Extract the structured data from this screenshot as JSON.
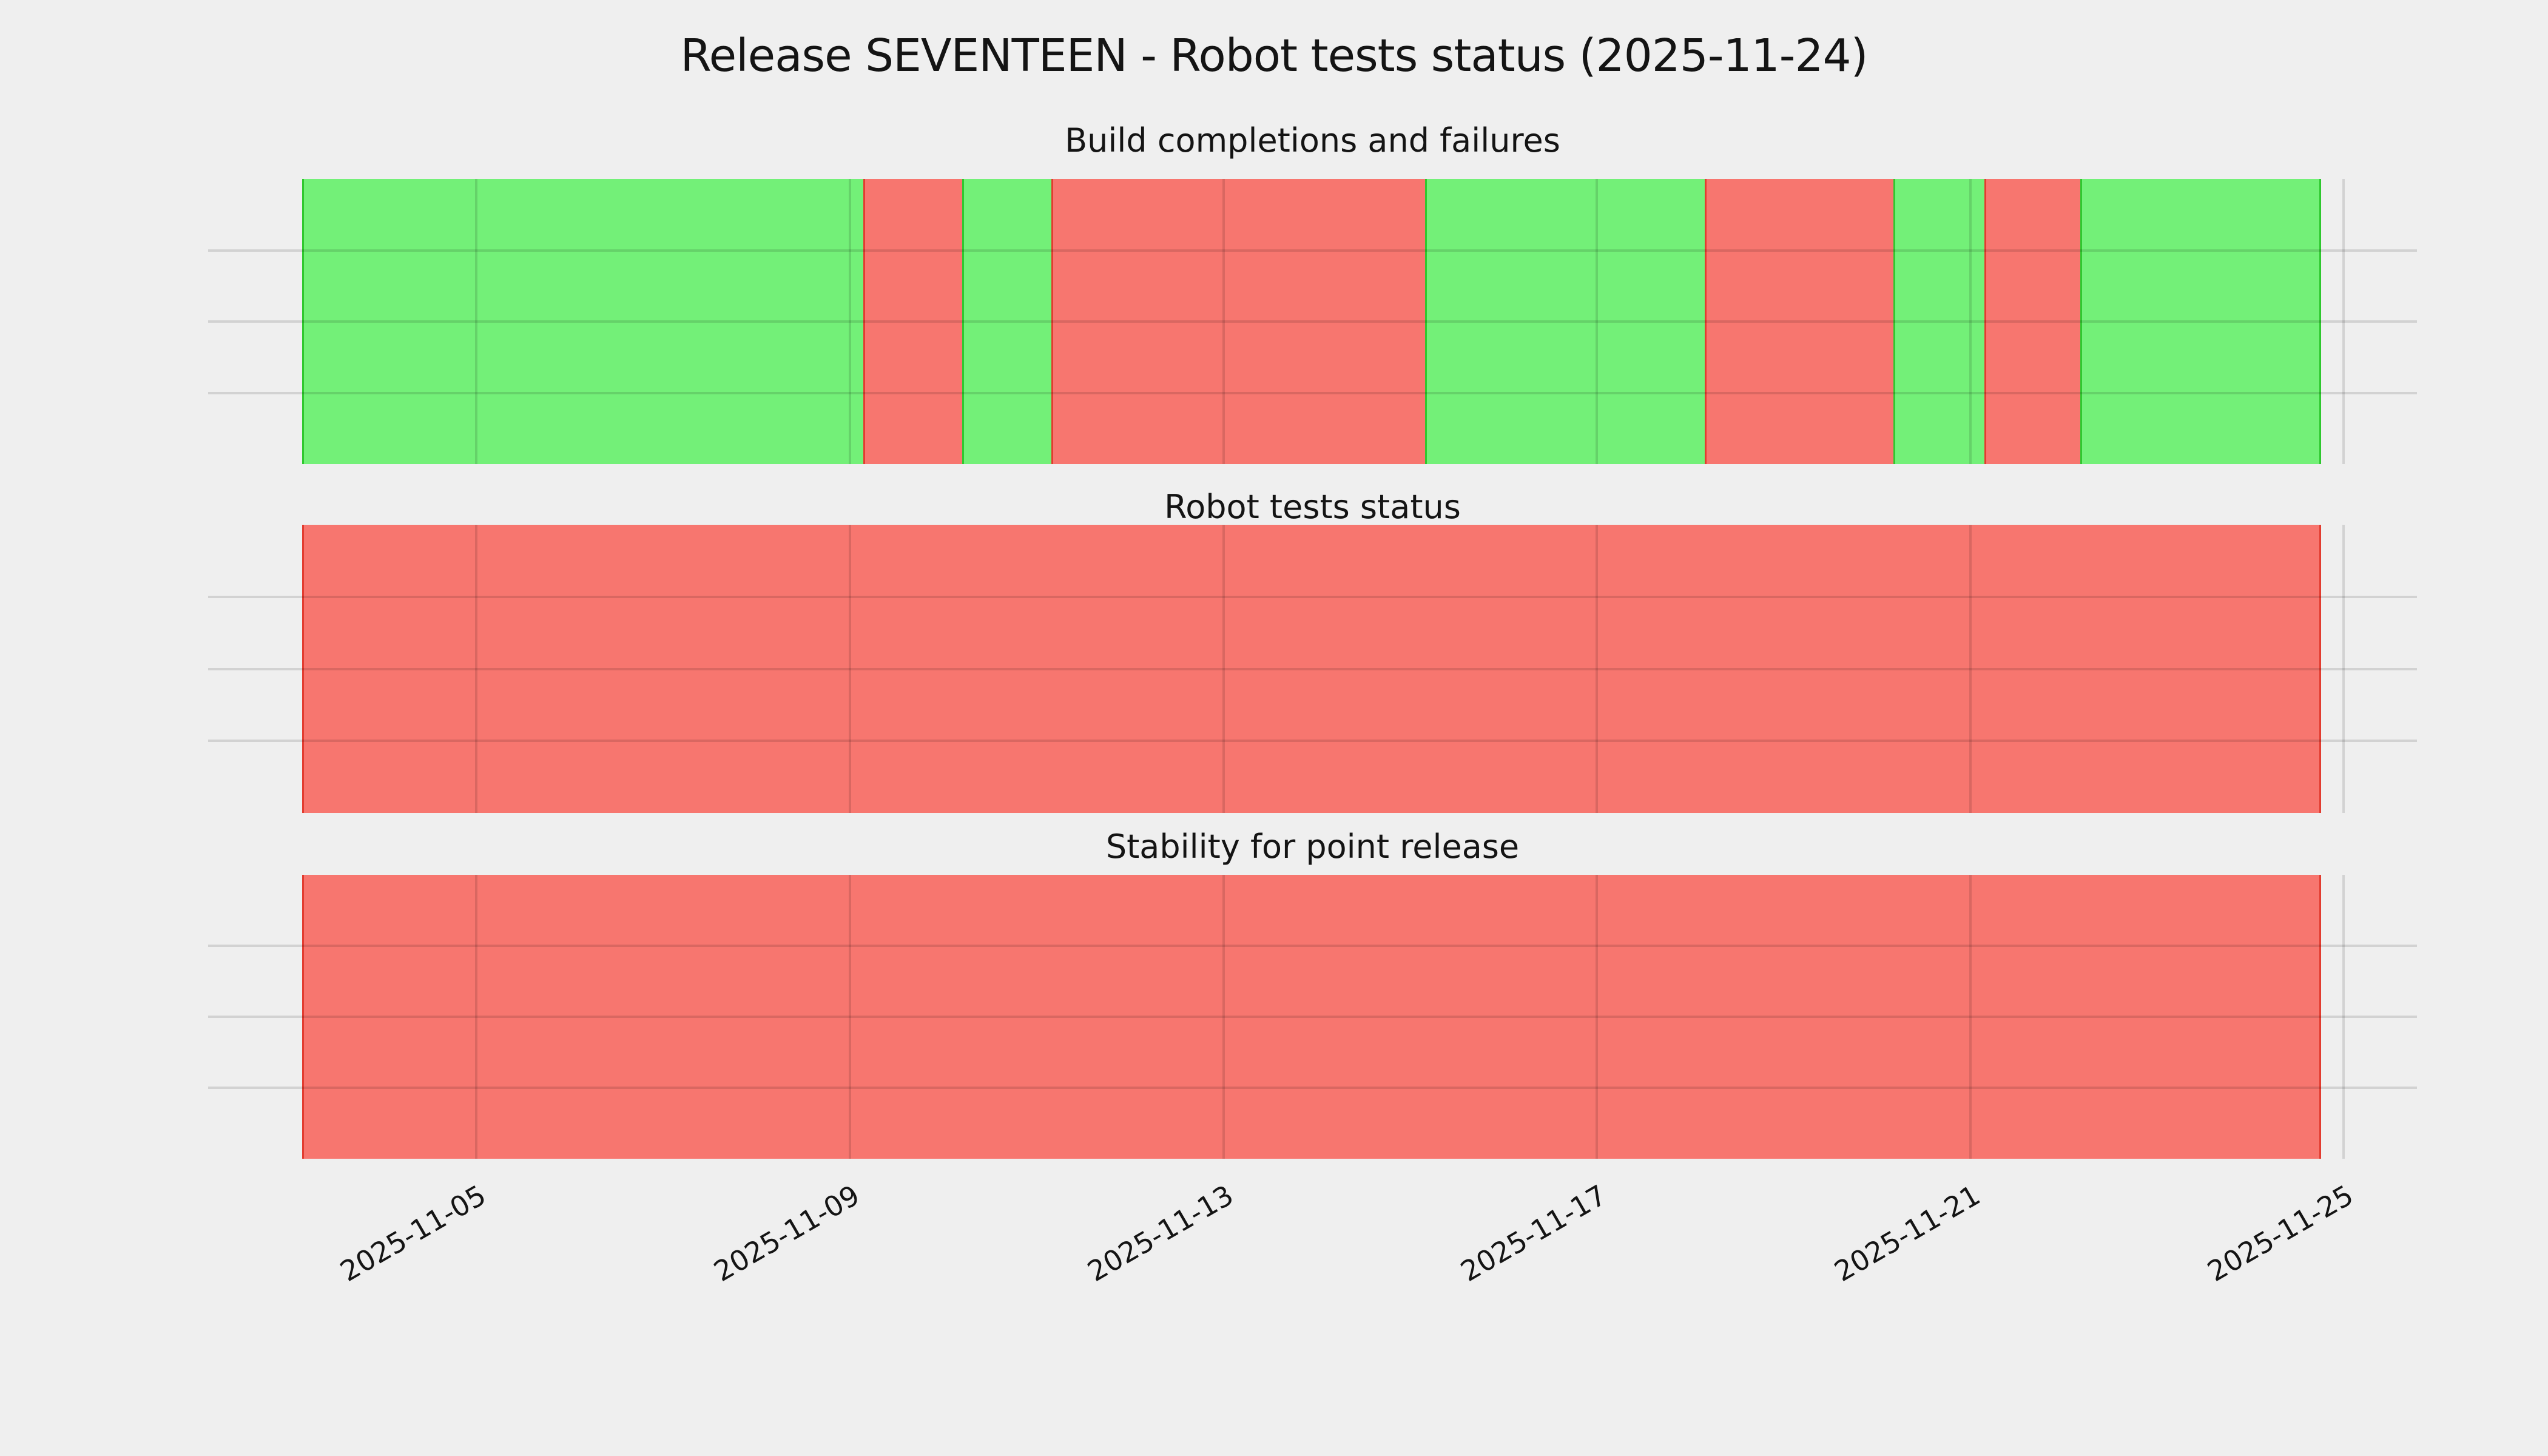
{
  "chart_data": {
    "type": "bar",
    "subtype": "status-timeline",
    "title": "Release SEVENTEEN - Robot tests status (2025-11-24)",
    "colors": {
      "background": "#efefef",
      "success": "#73f078",
      "failure": "#f7766f",
      "success_edge": "#2fc82f",
      "failure_edge": "#e23c30",
      "gridline": "rgba(0,0,0,0.12)",
      "text": "#141414"
    },
    "x_axis": {
      "range": [
        "2025-11-03",
        "2025-11-25"
      ],
      "grid": true,
      "ticks": [
        {
          "label": "2025-11-05",
          "pct": 12.14
        },
        {
          "label": "2025-11-09",
          "pct": 29.06
        },
        {
          "label": "2025-11-13",
          "pct": 45.98
        },
        {
          "label": "2025-11-17",
          "pct": 62.87
        },
        {
          "label": "2025-11-21",
          "pct": 79.79
        },
        {
          "label": "2025-11-25",
          "pct": 96.68
        }
      ]
    },
    "y_axis": {
      "tick_labels": [],
      "gridline_pcts": [
        25,
        50,
        75
      ]
    },
    "bar_span_pct": [
      4.26,
      95.66
    ],
    "panels": [
      {
        "title": "Build completions and failures",
        "segments": [
          {
            "status": "success",
            "start": "2025-11-03",
            "end": "2025-11-09",
            "start_pct": 4.26,
            "end_pct": 29.66
          },
          {
            "status": "failure",
            "start": "2025-11-09",
            "end": "2025-11-10",
            "start_pct": 29.66,
            "end_pct": 34.14
          },
          {
            "status": "success",
            "start": "2025-11-10",
            "end": "2025-11-11",
            "start_pct": 34.14,
            "end_pct": 38.18
          },
          {
            "status": "failure",
            "start": "2025-11-11",
            "end": "2025-11-15",
            "start_pct": 38.18,
            "end_pct": 55.09
          },
          {
            "status": "success",
            "start": "2025-11-15",
            "end": "2025-11-18",
            "start_pct": 55.09,
            "end_pct": 67.76
          },
          {
            "status": "failure",
            "start": "2025-11-18",
            "end": "2025-11-20",
            "start_pct": 67.76,
            "end_pct": 76.3
          },
          {
            "status": "success",
            "start": "2025-11-20",
            "end": "2025-11-21",
            "start_pct": 76.3,
            "end_pct": 80.42
          },
          {
            "status": "failure",
            "start": "2025-11-21",
            "end": "2025-11-22",
            "start_pct": 80.42,
            "end_pct": 84.76
          },
          {
            "status": "success",
            "start": "2025-11-22",
            "end": "2025-11-24",
            "start_pct": 84.76,
            "end_pct": 95.66
          }
        ]
      },
      {
        "title": "Robot tests status",
        "segments": [
          {
            "status": "failure",
            "start": "2025-11-03",
            "end": "2025-11-24",
            "start_pct": 4.26,
            "end_pct": 95.66
          }
        ]
      },
      {
        "title": "Stability for point release",
        "segments": [
          {
            "status": "failure",
            "start": "2025-11-03",
            "end": "2025-11-24",
            "start_pct": 4.26,
            "end_pct": 95.66
          }
        ]
      }
    ]
  }
}
